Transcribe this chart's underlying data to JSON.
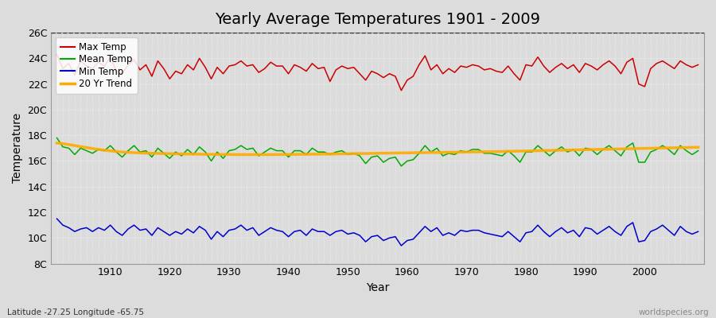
{
  "title": "Yearly Average Temperatures 1901 - 2009",
  "xlabel": "Year",
  "ylabel": "Temperature",
  "lat_lon_label": "Latitude -27.25 Longitude -65.75",
  "watermark": "worldspecies.org",
  "years": [
    1901,
    1902,
    1903,
    1904,
    1905,
    1906,
    1907,
    1908,
    1909,
    1910,
    1911,
    1912,
    1913,
    1914,
    1915,
    1916,
    1917,
    1918,
    1919,
    1920,
    1921,
    1922,
    1923,
    1924,
    1925,
    1926,
    1927,
    1928,
    1929,
    1930,
    1931,
    1932,
    1933,
    1934,
    1935,
    1936,
    1937,
    1938,
    1939,
    1940,
    1941,
    1942,
    1943,
    1944,
    1945,
    1946,
    1947,
    1948,
    1949,
    1950,
    1951,
    1952,
    1953,
    1954,
    1955,
    1956,
    1957,
    1958,
    1959,
    1960,
    1961,
    1962,
    1963,
    1964,
    1965,
    1966,
    1967,
    1968,
    1969,
    1970,
    1971,
    1972,
    1973,
    1974,
    1975,
    1976,
    1977,
    1978,
    1979,
    1980,
    1981,
    1982,
    1983,
    1984,
    1985,
    1986,
    1987,
    1988,
    1989,
    1990,
    1991,
    1992,
    1993,
    1994,
    1995,
    1996,
    1997,
    1998,
    1999,
    2000,
    2001,
    2002,
    2003,
    2004,
    2005,
    2006,
    2007,
    2008,
    2009
  ],
  "max_temp": [
    24.3,
    23.2,
    23.6,
    22.7,
    23.8,
    23.4,
    23.2,
    23.7,
    23.4,
    24.1,
    23.0,
    22.8,
    23.5,
    23.9,
    23.1,
    23.5,
    22.6,
    23.8,
    23.2,
    22.4,
    23.0,
    22.8,
    23.5,
    23.1,
    24.0,
    23.3,
    22.4,
    23.3,
    22.8,
    23.4,
    23.5,
    23.8,
    23.4,
    23.5,
    22.9,
    23.2,
    23.7,
    23.4,
    23.4,
    22.8,
    23.5,
    23.3,
    23.0,
    23.6,
    23.2,
    23.3,
    22.2,
    23.1,
    23.4,
    23.2,
    23.3,
    22.8,
    22.3,
    23.0,
    22.8,
    22.5,
    22.8,
    22.6,
    21.5,
    22.3,
    22.6,
    23.5,
    24.2,
    23.1,
    23.5,
    22.8,
    23.2,
    22.9,
    23.4,
    23.3,
    23.5,
    23.4,
    23.1,
    23.2,
    23.0,
    22.9,
    23.4,
    22.8,
    22.3,
    23.5,
    23.4,
    24.1,
    23.4,
    22.9,
    23.3,
    23.6,
    23.2,
    23.5,
    22.9,
    23.6,
    23.4,
    23.1,
    23.5,
    23.8,
    23.4,
    22.8,
    23.7,
    24.0,
    22.0,
    21.8,
    23.2,
    23.6,
    23.8,
    23.5,
    23.2,
    23.8,
    23.5,
    23.3,
    23.5
  ],
  "mean_temp": [
    17.8,
    17.1,
    17.0,
    16.5,
    17.0,
    16.8,
    16.6,
    16.9,
    16.8,
    17.2,
    16.7,
    16.3,
    16.8,
    17.2,
    16.7,
    16.8,
    16.3,
    17.0,
    16.6,
    16.2,
    16.7,
    16.4,
    16.9,
    16.5,
    17.1,
    16.7,
    16.0,
    16.7,
    16.2,
    16.8,
    16.9,
    17.2,
    16.9,
    17.0,
    16.4,
    16.7,
    17.0,
    16.8,
    16.8,
    16.3,
    16.8,
    16.8,
    16.5,
    17.0,
    16.7,
    16.7,
    16.5,
    16.7,
    16.8,
    16.5,
    16.6,
    16.4,
    15.8,
    16.3,
    16.4,
    15.9,
    16.2,
    16.3,
    15.6,
    16.0,
    16.1,
    16.6,
    17.2,
    16.7,
    17.0,
    16.4,
    16.6,
    16.5,
    16.8,
    16.7,
    16.9,
    16.9,
    16.6,
    16.6,
    16.5,
    16.4,
    16.8,
    16.4,
    15.9,
    16.7,
    16.7,
    17.2,
    16.8,
    16.4,
    16.8,
    17.1,
    16.7,
    16.9,
    16.4,
    17.0,
    16.9,
    16.5,
    16.9,
    17.2,
    16.8,
    16.4,
    17.1,
    17.4,
    15.9,
    15.9,
    16.7,
    16.9,
    17.2,
    16.9,
    16.5,
    17.2,
    16.8,
    16.5,
    16.8
  ],
  "min_temp": [
    11.5,
    11.0,
    10.8,
    10.5,
    10.7,
    10.8,
    10.5,
    10.8,
    10.6,
    11.0,
    10.5,
    10.2,
    10.7,
    11.0,
    10.6,
    10.7,
    10.2,
    10.8,
    10.5,
    10.2,
    10.5,
    10.3,
    10.7,
    10.4,
    10.9,
    10.6,
    9.9,
    10.5,
    10.1,
    10.6,
    10.7,
    11.0,
    10.6,
    10.8,
    10.2,
    10.5,
    10.8,
    10.6,
    10.5,
    10.1,
    10.5,
    10.6,
    10.2,
    10.7,
    10.5,
    10.5,
    10.2,
    10.5,
    10.6,
    10.3,
    10.4,
    10.2,
    9.7,
    10.1,
    10.2,
    9.8,
    10.0,
    10.1,
    9.4,
    9.8,
    9.9,
    10.4,
    10.9,
    10.5,
    10.8,
    10.2,
    10.4,
    10.2,
    10.6,
    10.5,
    10.6,
    10.6,
    10.4,
    10.3,
    10.2,
    10.1,
    10.5,
    10.1,
    9.7,
    10.4,
    10.5,
    11.0,
    10.5,
    10.1,
    10.5,
    10.8,
    10.4,
    10.6,
    10.1,
    10.8,
    10.7,
    10.3,
    10.6,
    10.9,
    10.5,
    10.2,
    10.9,
    11.2,
    9.7,
    9.8,
    10.5,
    10.7,
    11.0,
    10.6,
    10.2,
    10.9,
    10.5,
    10.3,
    10.5
  ],
  "trend_mean": [
    17.4,
    17.35,
    17.28,
    17.2,
    17.12,
    17.05,
    16.97,
    16.9,
    16.84,
    16.79,
    16.74,
    16.7,
    16.67,
    16.65,
    16.63,
    16.61,
    16.6,
    16.59,
    16.58,
    16.57,
    16.56,
    16.55,
    16.54,
    16.54,
    16.53,
    16.52,
    16.52,
    16.51,
    16.51,
    16.51,
    16.5,
    16.5,
    16.5,
    16.5,
    16.5,
    16.5,
    16.5,
    16.5,
    16.51,
    16.51,
    16.51,
    16.52,
    16.52,
    16.53,
    16.53,
    16.54,
    16.54,
    16.55,
    16.56,
    16.56,
    16.57,
    16.58,
    16.58,
    16.59,
    16.6,
    16.61,
    16.61,
    16.62,
    16.63,
    16.63,
    16.64,
    16.65,
    16.65,
    16.66,
    16.66,
    16.67,
    16.68,
    16.68,
    16.69,
    16.7,
    16.7,
    16.71,
    16.72,
    16.72,
    16.73,
    16.74,
    16.75,
    16.76,
    16.77,
    16.78,
    16.79,
    16.8,
    16.81,
    16.82,
    16.83,
    16.84,
    16.85,
    16.86,
    16.87,
    16.88,
    16.89,
    16.9,
    16.91,
    16.92,
    16.93,
    16.94,
    16.95,
    16.96,
    16.97,
    16.98,
    16.99,
    17.0,
    17.01,
    17.02,
    17.03,
    17.04,
    17.05,
    17.06,
    17.07
  ],
  "max_color": "#cc0000",
  "mean_color": "#00aa00",
  "min_color": "#0000cc",
  "trend_color": "#ffaa00",
  "bg_color": "#dcdcdc",
  "grid_color": "#ffffff",
  "ylim": [
    8,
    26
  ],
  "yticks": [
    8,
    10,
    12,
    14,
    16,
    18,
    20,
    22,
    24,
    26
  ],
  "ytick_labels": [
    "8C",
    "10C",
    "12C",
    "14C",
    "16C",
    "18C",
    "20C",
    "22C",
    "24C",
    "26C"
  ],
  "xticks": [
    1910,
    1920,
    1930,
    1940,
    1950,
    1960,
    1970,
    1980,
    1990,
    2000
  ],
  "title_fontsize": 14,
  "axis_label_fontsize": 10,
  "tick_fontsize": 9,
  "legend_labels": [
    "Max Temp",
    "Mean Temp",
    "Min Temp",
    "20 Yr Trend"
  ],
  "legend_colors": [
    "#cc0000",
    "#00aa00",
    "#0000cc",
    "#ffaa00"
  ],
  "dotted_line_y": 26,
  "trend_linewidth": 2.5,
  "line_linewidth": 1.1
}
